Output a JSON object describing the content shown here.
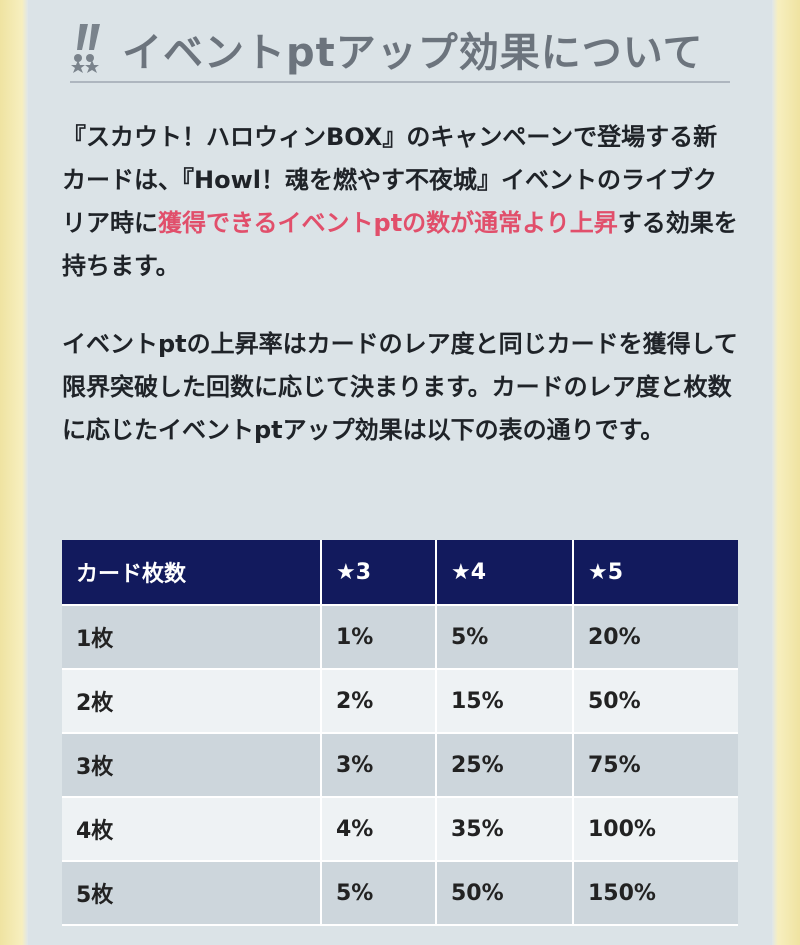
{
  "section": {
    "title": "イベントptアップ効果について",
    "paragraph1": {
      "before": "『スカウト！ハロウィンBOX』のキャンペーンで登場する新カードは、『Howl！魂を燃やす不夜城』イベントのライブクリア時に",
      "highlight": "獲得できるイベントptの数が通常より上昇",
      "after": "する効果を持ちます。"
    },
    "paragraph2": "イベントptの上昇率はカードのレア度と同じカードを獲得して限界突破した回数に応じて決まります。カードのレア度と枚数に応じたイベントptアップ効果は以下の表の通りです。"
  },
  "table": {
    "headers": [
      "カード枚数",
      "★3",
      "★4",
      "★5"
    ],
    "rows": [
      [
        "1枚",
        "1%",
        "5%",
        "20%"
      ],
      [
        "2枚",
        "2%",
        "15%",
        "50%"
      ],
      [
        "3枚",
        "3%",
        "25%",
        "75%"
      ],
      [
        "4枚",
        "4%",
        "35%",
        "100%"
      ],
      [
        "5枚",
        "5%",
        "50%",
        "150%"
      ]
    ]
  },
  "colors": {
    "header_background": "#121a5d",
    "highlight_text": "#e14f6b",
    "title_text": "#6c747d",
    "frame_border": "#efe3a1"
  },
  "icons": {
    "heading_decoration": "double-exclamation-stars-icon"
  }
}
